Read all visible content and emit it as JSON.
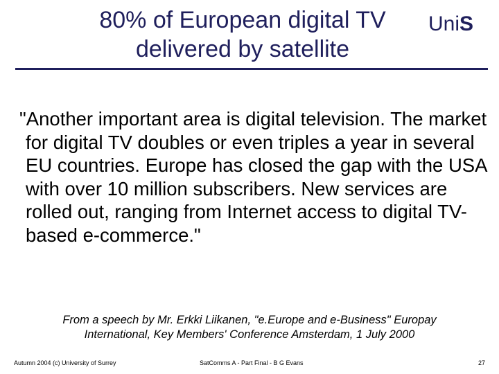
{
  "slide": {
    "title_line1": "80% of European digital TV",
    "title_line2": "delivered by satellite",
    "logo_text": "Uni",
    "logo_mark": "S",
    "quote": "\"Another important area is digital television. The market for digital TV doubles or even triples a year in several EU countries. Europe has closed the gap with the USA with over 10 million subscribers. New services are rolled out, ranging from Internet access to digital TV-based e-commerce.\"",
    "citation_line1": "From a speech by Mr. Erkki Liikanen, \"e.Europe and e-Business\" Europay",
    "citation_line2": "International, Key Members' Conference Amsterdam, 1 July 2000"
  },
  "footer": {
    "left": "Autumn 2004 (c) University of Surrey",
    "center": "SatComms A - Part Final - B G Evans",
    "page_number": "27"
  },
  "colors": {
    "title": "#1f1f5c",
    "text": "#000000"
  }
}
